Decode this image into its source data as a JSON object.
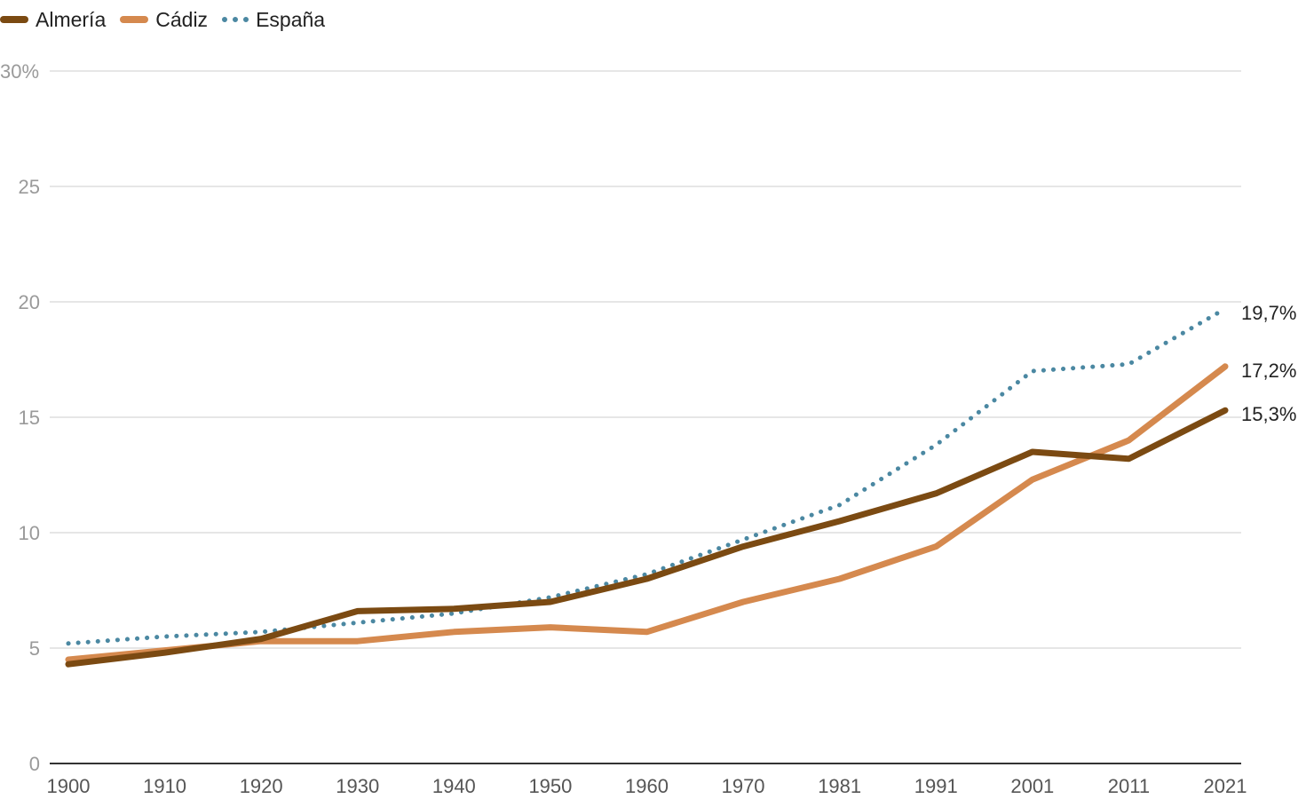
{
  "chart_data": {
    "type": "line",
    "title": "",
    "xlabel": "",
    "ylabel": "",
    "categories": [
      "1900",
      "1910",
      "1920",
      "1930",
      "1940",
      "1950",
      "1960",
      "1970",
      "1981",
      "1991",
      "2001",
      "2011",
      "2021"
    ],
    "ylim": [
      0,
      30
    ],
    "yticks": [
      "0",
      "5",
      "10",
      "15",
      "20",
      "25",
      "30%"
    ],
    "series": [
      {
        "name": "Almería",
        "color": "#7b4a12",
        "style": "solid",
        "values": [
          4.3,
          4.8,
          5.4,
          6.6,
          6.7,
          7.0,
          8.0,
          9.4,
          10.5,
          11.7,
          13.5,
          13.2,
          15.3
        ],
        "end_label": "15,3%"
      },
      {
        "name": "Cádiz",
        "color": "#d5894e",
        "style": "solid",
        "values": [
          4.5,
          4.9,
          5.3,
          5.3,
          5.7,
          5.9,
          5.7,
          7.0,
          8.0,
          9.4,
          12.3,
          14.0,
          17.2
        ],
        "end_label": "17,2%"
      },
      {
        "name": "España",
        "color": "#4b88a2",
        "style": "dotted",
        "values": [
          5.2,
          5.5,
          5.7,
          6.1,
          6.5,
          7.2,
          8.2,
          9.7,
          11.2,
          13.8,
          17.0,
          17.3,
          19.7
        ],
        "end_label": "19,7%"
      }
    ],
    "grid": true,
    "legend": "top-left"
  }
}
